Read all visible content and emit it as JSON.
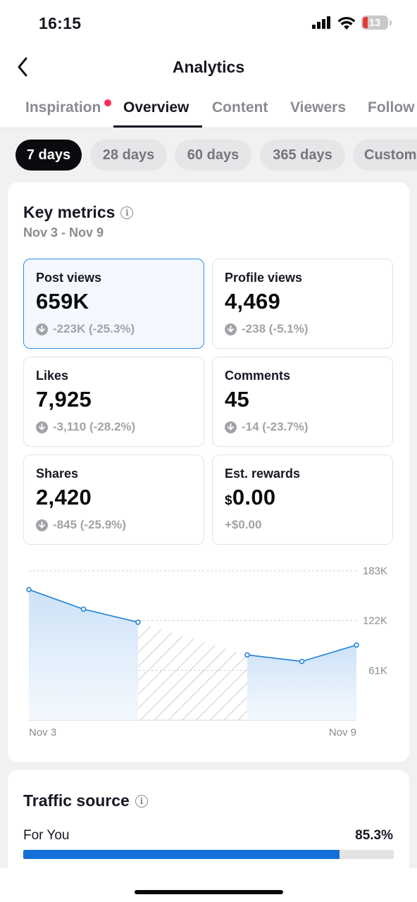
{
  "status_bar": {
    "time": "16:15",
    "battery": "13"
  },
  "header": {
    "title": "Analytics"
  },
  "tabs": [
    {
      "label": "Inspiration",
      "has_dot": true
    },
    {
      "label": "Overview",
      "active": true
    },
    {
      "label": "Content"
    },
    {
      "label": "Viewers"
    },
    {
      "label": "Follow"
    }
  ],
  "ranges": [
    {
      "label": "7 days",
      "active": true
    },
    {
      "label": "28 days"
    },
    {
      "label": "60 days"
    },
    {
      "label": "365 days"
    },
    {
      "label": "Custom"
    }
  ],
  "key_metrics": {
    "title": "Key metrics",
    "date_range": "Nov 3 - Nov 9",
    "items": [
      {
        "label": "Post views",
        "value": "659K",
        "change": "-223K (-25.3%)",
        "selected": true
      },
      {
        "label": "Profile views",
        "value": "4,469",
        "change": "-238 (-5.1%)"
      },
      {
        "label": "Likes",
        "value": "7,925",
        "change": "-3,110 (-28.2%)"
      },
      {
        "label": "Comments",
        "value": "45",
        "change": "-14 (-23.7%)"
      },
      {
        "label": "Shares",
        "value": "2,420",
        "change": "-845 (-25.9%)"
      },
      {
        "label": "Est. rewards",
        "value_currency": "$",
        "value": "0.00",
        "change": "+$0.00"
      }
    ]
  },
  "chart_data": {
    "type": "area",
    "x": [
      "Nov 3",
      "Nov 4",
      "Nov 5",
      "Nov 6",
      "Nov 7",
      "Nov 8",
      "Nov 9"
    ],
    "x_tick_labels": [
      "Nov 3",
      "Nov 9"
    ],
    "y_tick_labels": [
      "183K",
      "122K",
      "61K"
    ],
    "y_ticks": [
      183000,
      122000,
      61000
    ],
    "ylim": [
      0,
      183000
    ],
    "values": [
      160000,
      136000,
      120000,
      null,
      80000,
      72000,
      92000
    ],
    "hatched_gap_between": [
      "Nov 5",
      "Nov 7"
    ],
    "grid": "dashed horizontal",
    "color": "#1b7fd6"
  },
  "traffic_source": {
    "title": "Traffic source",
    "rows": [
      {
        "label": "For You",
        "percent": "85.3%",
        "fraction": 0.853
      }
    ]
  }
}
